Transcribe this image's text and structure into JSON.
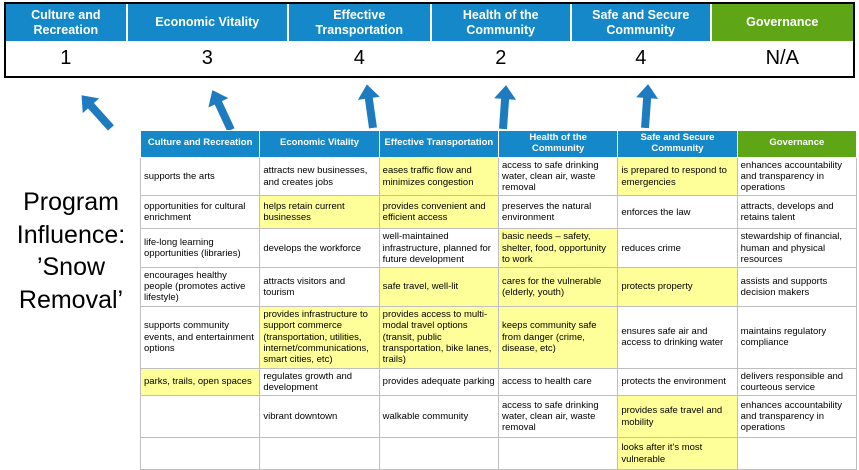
{
  "program_label": "Program Influence: ’Snow Removal’",
  "colors": {
    "header_blue": "#1588CA",
    "header_green": "#5EA616",
    "highlight_yellow": "#FFFF99",
    "arrow_blue": "#1F7BC0",
    "grid_gray": "#BFBFBF"
  },
  "summary": {
    "columns": [
      {
        "label": "Culture and Recreation",
        "score": "1",
        "theme": "blue"
      },
      {
        "label": "Economic Vitality",
        "score": "3",
        "theme": "blue"
      },
      {
        "label": "Effective Transportation",
        "score": "4",
        "theme": "blue"
      },
      {
        "label": "Health of the Community",
        "score": "2",
        "theme": "blue"
      },
      {
        "label": "Safe and Secure Community",
        "score": "4",
        "theme": "blue"
      },
      {
        "label": "Governance",
        "score": "N/A",
        "theme": "green"
      }
    ]
  },
  "matrix": {
    "headers": [
      {
        "label": "Culture and Recreation",
        "theme": "blue"
      },
      {
        "label": "Economic Vitality",
        "theme": "blue"
      },
      {
        "label": "Effective Transportation",
        "theme": "blue"
      },
      {
        "label": "Health of the Community",
        "theme": "blue"
      },
      {
        "label": "Safe and Secure Community",
        "theme": "blue"
      },
      {
        "label": "Governance",
        "theme": "green"
      }
    ],
    "rows": [
      [
        {
          "text": "supports the arts",
          "highlight": false
        },
        {
          "text": "attracts new businesses, and creates jobs",
          "highlight": false
        },
        {
          "text": "eases traffic flow and minimizes congestion",
          "highlight": true
        },
        {
          "text": "access to safe drinking water, clean air, waste removal",
          "highlight": false
        },
        {
          "text": "is prepared to respond to emergencies",
          "highlight": true
        },
        {
          "text": "enhances accountability and transparency in operations",
          "highlight": false
        }
      ],
      [
        {
          "text": "opportunities for cultural enrichment",
          "highlight": false
        },
        {
          "text": "helps retain current businesses",
          "highlight": true
        },
        {
          "text": "provides convenient and efficient access",
          "highlight": true
        },
        {
          "text": "preserves the natural environment",
          "highlight": false
        },
        {
          "text": "enforces the law",
          "highlight": false
        },
        {
          "text": "attracts, develops and retains talent",
          "highlight": false
        }
      ],
      [
        {
          "text": "life-long learning opportunities (libraries)",
          "highlight": false
        },
        {
          "text": "develops the workforce",
          "highlight": false
        },
        {
          "text": "well-maintained infrastructure, planned for future development",
          "highlight": false
        },
        {
          "text": "basic needs – safety, shelter, food, opportunity to work",
          "highlight": true
        },
        {
          "text": "reduces crime",
          "highlight": false
        },
        {
          "text": "stewardship of financial, human and physical resources",
          "highlight": false
        }
      ],
      [
        {
          "text": "encourages healthy people (promotes active lifestyle)",
          "highlight": false
        },
        {
          "text": "attracts visitors and tourism",
          "highlight": false
        },
        {
          "text": "safe travel, well-lit",
          "highlight": true
        },
        {
          "text": "cares for the vulnerable (elderly, youth)",
          "highlight": true
        },
        {
          "text": "protects property",
          "highlight": true
        },
        {
          "text": "assists and supports decision makers",
          "highlight": false
        }
      ],
      [
        {
          "text": "supports community events, and entertainment options",
          "highlight": false
        },
        {
          "text": "provides infrastructure to support commerce (transportation, utilities, internet/communications, smart cities, etc)",
          "highlight": true
        },
        {
          "text": "provides access to multi-modal travel options (transit, public transportation, bike lanes, trails)",
          "highlight": true
        },
        {
          "text": "keeps community safe from danger (crime, disease, etc)",
          "highlight": true
        },
        {
          "text": "ensures safe air and access to drinking water",
          "highlight": false
        },
        {
          "text": "maintains regulatory compliance",
          "highlight": false
        }
      ],
      [
        {
          "text": "parks, trails, open spaces",
          "highlight": true
        },
        {
          "text": "regulates growth and development",
          "highlight": false
        },
        {
          "text": "provides adequate parking",
          "highlight": false
        },
        {
          "text": "access to health care",
          "highlight": false
        },
        {
          "text": "protects the environment",
          "highlight": false
        },
        {
          "text": "delivers responsible and courteous service",
          "highlight": false
        }
      ],
      [
        {
          "text": "",
          "highlight": false
        },
        {
          "text": "vibrant downtown",
          "highlight": false
        },
        {
          "text": "walkable community",
          "highlight": false
        },
        {
          "text": "access to safe drinking water, clean air, waste removal",
          "highlight": false
        },
        {
          "text": "provides safe travel and mobility",
          "highlight": true
        },
        {
          "text": "enhances accountability and transparency in operations",
          "highlight": false
        }
      ],
      [
        {
          "text": "",
          "highlight": false
        },
        {
          "text": "",
          "highlight": false
        },
        {
          "text": "",
          "highlight": false
        },
        {
          "text": "",
          "highlight": false
        },
        {
          "text": "looks after it's most vulnerable",
          "highlight": true
        },
        {
          "text": "",
          "highlight": false
        }
      ]
    ]
  }
}
